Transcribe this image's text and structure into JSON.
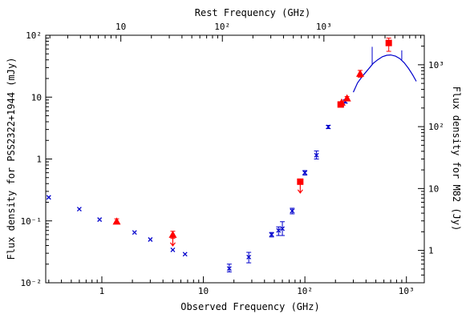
{
  "chart_data": {
    "type": "scatter",
    "xlabel": "Observed Frequency (GHz)",
    "ylabel": "Flux density for PSS2322+1944 (mJy)",
    "top_xlabel": "Rest Frequency (GHz)",
    "right_ylabel": "Flux density for M82 (Jy)",
    "x_scale": "log",
    "y_scale": "log",
    "xlim": [
      0.28,
      1500
    ],
    "ylim": [
      0.01,
      100
    ],
    "right_ylim": [
      0.3,
      3000
    ],
    "top_xlim": [
      1.82,
      9750
    ],
    "grid": false,
    "x_ticks": [
      {
        "value": 1,
        "label": "1"
      },
      {
        "value": 10,
        "label": "10"
      },
      {
        "value": 100,
        "label": "10²"
      },
      {
        "value": 1000,
        "label": "10³"
      }
    ],
    "y_ticks": [
      {
        "value": 0.01,
        "label": "10⁻²"
      },
      {
        "value": 0.1,
        "label": "10⁻¹"
      },
      {
        "value": 1,
        "label": "1"
      },
      {
        "value": 10,
        "label": "10"
      },
      {
        "value": 100,
        "label": "10²"
      }
    ],
    "top_ticks": [
      {
        "value": 10,
        "label": "10"
      },
      {
        "value": 100,
        "label": "10²"
      },
      {
        "value": 1000,
        "label": "10³"
      }
    ],
    "right_ticks": [
      {
        "value": 1,
        "label": "1"
      },
      {
        "value": 10,
        "label": "10"
      },
      {
        "value": 100,
        "label": "10²"
      },
      {
        "value": 1000,
        "label": "10³"
      }
    ],
    "series": [
      {
        "color": "#0000cc",
        "marker": "x-errorbar",
        "points": [
          {
            "x": 0.3,
            "y": 0.24
          },
          {
            "x": 0.6,
            "y": 0.155
          },
          {
            "x": 0.95,
            "y": 0.105
          },
          {
            "x": 2.1,
            "y": 0.065
          },
          {
            "x": 3.0,
            "y": 0.05
          },
          {
            "x": 5.0,
            "y": 0.034
          },
          {
            "x": 6.6,
            "y": 0.029
          },
          {
            "x": 18,
            "y": 0.017,
            "ylo": 0.015,
            "yhi": 0.02
          },
          {
            "x": 28,
            "y": 0.026,
            "ylo": 0.021,
            "yhi": 0.031
          },
          {
            "x": 47,
            "y": 0.06,
            "ylo": 0.055,
            "yhi": 0.065
          },
          {
            "x": 55,
            "y": 0.07,
            "ylo": 0.058,
            "yhi": 0.08
          },
          {
            "x": 60,
            "y": 0.075,
            "ylo": 0.058,
            "yhi": 0.097
          },
          {
            "x": 75,
            "y": 0.145,
            "ylo": 0.13,
            "yhi": 0.16
          },
          {
            "x": 100,
            "y": 0.6,
            "ylo": 0.55,
            "yhi": 0.65
          },
          {
            "x": 130,
            "y": 1.15,
            "ylo": 1.0,
            "yhi": 1.35
          },
          {
            "x": 170,
            "y": 3.3,
            "ylo": 3.1,
            "yhi": 3.5
          },
          {
            "x": 230,
            "y": 7.5,
            "ylo": 7.0,
            "yhi": 8.0
          },
          {
            "x": 250,
            "y": 8.5,
            "ylo": 8.0,
            "yhi": 9.0
          }
        ]
      },
      {
        "color": "#ff0000",
        "marker": "filled",
        "points": [
          {
            "x": 1.4,
            "y": 0.098,
            "shape": "triangle",
            "ylo": 0.09,
            "yhi": 0.108
          },
          {
            "x": 5.0,
            "y": 0.06,
            "shape": "triangle",
            "ylo": 0.052,
            "yhi": 0.068,
            "upper_limit": true
          },
          {
            "x": 90,
            "y": 0.43,
            "shape": "square",
            "upper_limit": true
          },
          {
            "x": 225,
            "y": 7.6,
            "shape": "square",
            "ylo": 7.0,
            "yhi": 8.3
          },
          {
            "x": 230,
            "y": 8.2,
            "shape": "triangle"
          },
          {
            "x": 260,
            "y": 9.6,
            "shape": "triangle",
            "ylo": 9.0,
            "yhi": 10.2
          },
          {
            "x": 350,
            "y": 24,
            "shape": "triangle",
            "ylo": 21,
            "yhi": 27
          },
          {
            "x": 670,
            "y": 75,
            "shape": "square",
            "ylo": 55,
            "yhi": 90
          }
        ]
      }
    ],
    "model_curve": {
      "color": "#0000cc",
      "points": [
        [
          300,
          12
        ],
        [
          330,
          17
        ],
        [
          370,
          22
        ],
        [
          420,
          28
        ],
        [
          470,
          35
        ],
        [
          520,
          40
        ],
        [
          580,
          45
        ],
        [
          640,
          47.5
        ],
        [
          700,
          48
        ],
        [
          780,
          46
        ],
        [
          860,
          42
        ],
        [
          950,
          36
        ],
        [
          1050,
          29
        ],
        [
          1150,
          23
        ],
        [
          1250,
          18
        ]
      ],
      "spikes": [
        {
          "x": 460,
          "base": 33,
          "top": 65
        },
        {
          "x": 900,
          "base": 40,
          "top": 57
        }
      ]
    }
  }
}
